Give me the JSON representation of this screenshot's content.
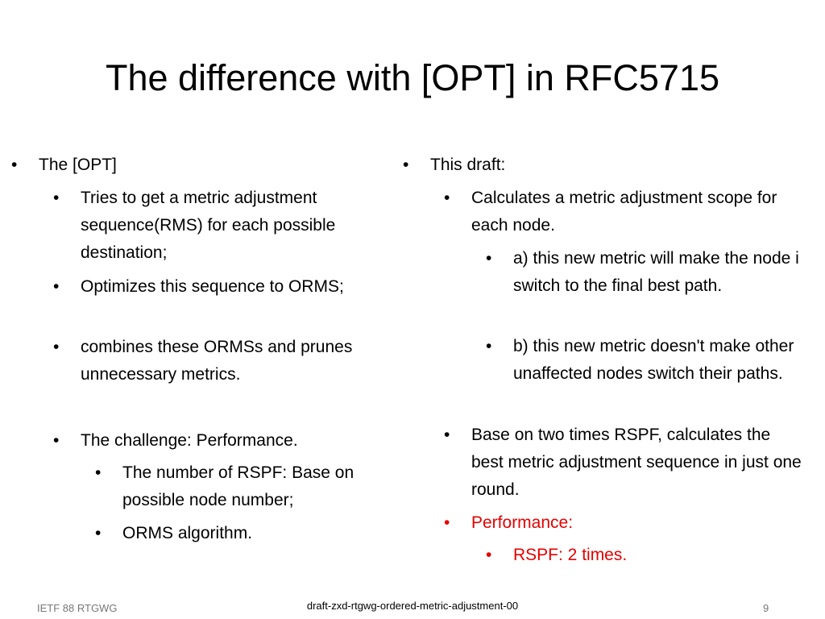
{
  "title": "The difference with [OPT] in RFC5715",
  "left": {
    "items": [
      {
        "level": 0,
        "text": "The [OPT]"
      },
      {
        "level": 1,
        "text": "Tries to get a metric adjustment sequence(RMS) for each possible destination;"
      },
      {
        "level": 1,
        "text": "Optimizes this sequence to ORMS;"
      },
      {
        "level": 1,
        "text": "combines these ORMSs and prunes unnecessary metrics."
      },
      {
        "level": 1,
        "text": "The challenge: Performance."
      },
      {
        "level": 2,
        "text": "The number of RSPF: Base on possible node number;"
      },
      {
        "level": 2,
        "text": "ORMS algorithm."
      }
    ]
  },
  "right": {
    "items": [
      {
        "level": 0,
        "text": "This draft:"
      },
      {
        "level": 1,
        "text": "Calculates a metric adjustment scope for each node."
      },
      {
        "level": 2,
        "text": "a) this new metric will make the node i switch to the final best path."
      },
      {
        "level": 2,
        "text": "b) this new metric doesn't make other unaffected nodes switch their paths."
      },
      {
        "level": 1,
        "text": "Base on two times RSPF, calculates the best metric adjustment sequence in just one round."
      },
      {
        "level": 1,
        "text": "Performance:"
      },
      {
        "level": 2,
        "text": "RSPF: 2 times."
      }
    ]
  },
  "footer": {
    "left": "IETF 88 RTGWG",
    "center": "draft-zxd-rtgwg-ordered-metric-adjustment-00",
    "page": "9"
  }
}
